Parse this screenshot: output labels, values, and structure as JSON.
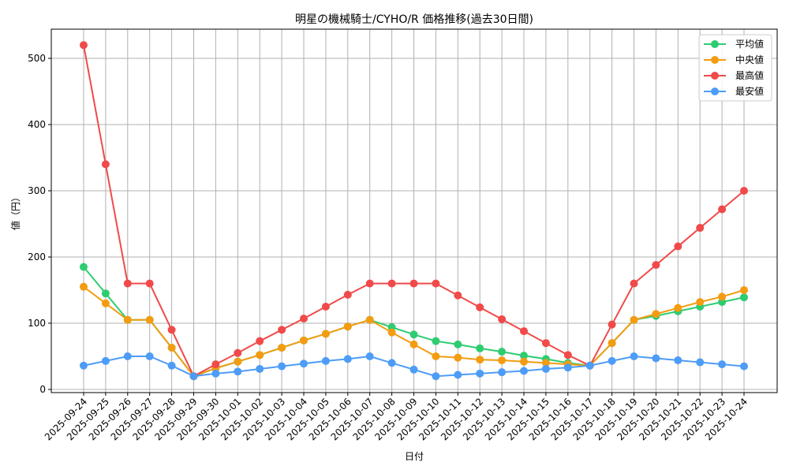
{
  "chart_data": {
    "type": "line",
    "title": "明星の機械騎士/CYHO/R 価格推移(過去30日間)",
    "xlabel": "日付",
    "ylabel": "値（円）",
    "ylim": [
      -6,
      545
    ],
    "yticks": [
      0,
      100,
      200,
      300,
      400,
      500
    ],
    "grid": true,
    "legend_position": "upper right",
    "categories": [
      "2025-09-24",
      "2025-09-25",
      "2025-09-26",
      "2025-09-27",
      "2025-09-28",
      "2025-09-29",
      "2025-09-30",
      "2025-10-01",
      "2025-10-02",
      "2025-10-03",
      "2025-10-04",
      "2025-10-05",
      "2025-10-06",
      "2025-10-07",
      "2025-10-08",
      "2025-10-09",
      "2025-10-10",
      "2025-10-11",
      "2025-10-12",
      "2025-10-13",
      "2025-10-14",
      "2025-10-15",
      "2025-10-16",
      "2025-10-17",
      "2025-10-18",
      "2025-10-19",
      "2025-10-20",
      "2025-10-21",
      "2025-10-22",
      "2025-10-23",
      "2025-10-24"
    ],
    "series": [
      {
        "name": "平均値",
        "color": "#2ecc71",
        "values": [
          185,
          145,
          105,
          105,
          63,
          20,
          32,
          42,
          52,
          63,
          74,
          84,
          95,
          105,
          94,
          83,
          73,
          68,
          62,
          57,
          51,
          46,
          40,
          36,
          70,
          105,
          111,
          118,
          125,
          132,
          139
        ]
      },
      {
        "name": "中央値",
        "color": "#f39c12",
        "values": [
          155,
          130,
          105,
          105,
          63,
          20,
          32,
          42,
          52,
          63,
          74,
          84,
          95,
          105,
          86,
          68,
          50,
          48,
          45,
          44,
          42,
          40,
          38,
          36,
          70,
          105,
          114,
          123,
          132,
          140,
          150
        ]
      },
      {
        "name": "最高値",
        "color": "#f04a4a",
        "values": [
          520,
          340,
          160,
          160,
          90,
          20,
          38,
          55,
          73,
          90,
          107,
          125,
          143,
          160,
          160,
          160,
          160,
          142,
          124,
          106,
          88,
          70,
          52,
          36,
          98,
          160,
          188,
          216,
          244,
          272,
          300
        ]
      },
      {
        "name": "最安値",
        "color": "#4d9cf7",
        "values": [
          36,
          43,
          50,
          50,
          36,
          20,
          24,
          27,
          31,
          35,
          39,
          43,
          46,
          50,
          40,
          30,
          20,
          22,
          24,
          26,
          28,
          31,
          33,
          36,
          43,
          50,
          47,
          44,
          41,
          38,
          35
        ]
      }
    ]
  }
}
